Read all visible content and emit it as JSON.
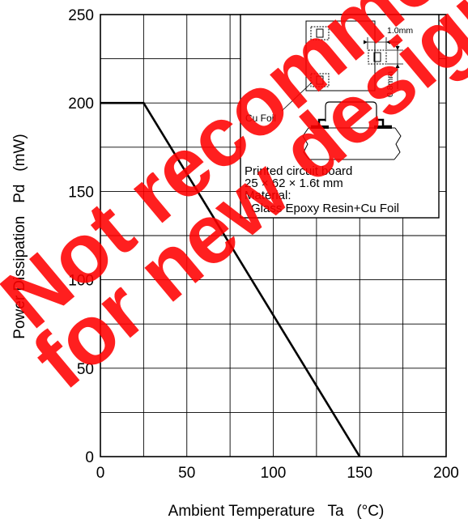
{
  "colors": {
    "watermark": "#ff0000",
    "line": "#000000",
    "grid": "#000000",
    "background": "#ffffff"
  },
  "chart_data": {
    "type": "line",
    "title": "",
    "xlabel": "Ambient Temperature   Ta   (°C)",
    "ylabel": "Power Dissipation   Pd   (mW)",
    "xlim": [
      0,
      200
    ],
    "ylim": [
      0,
      250
    ],
    "x_ticks": [
      0,
      50,
      100,
      150,
      200
    ],
    "y_ticks": [
      0,
      50,
      100,
      150,
      200,
      250
    ],
    "x_tick_labels": [
      "0",
      "50",
      "100",
      "150",
      "200"
    ],
    "y_tick_labels": [
      "0",
      "50",
      "100",
      "150",
      "200",
      "250"
    ],
    "grid": true,
    "series": [
      {
        "x": [
          0,
          25,
          150
        ],
        "y": [
          200,
          200,
          0
        ]
      }
    ]
  },
  "inset": {
    "cu_foil_label": "Cu Foil",
    "dim_width": "1.0mm",
    "dim_height": "0.8mm",
    "board_line1": "Printed circuit board",
    "board_line2": "25 × 62 × 1.6t mm",
    "material_label": "Material:",
    "material_value": "Glass Epoxy Resin+Cu Foil"
  },
  "watermark": {
    "line1": "Not recommended",
    "line2": "for new design"
  }
}
